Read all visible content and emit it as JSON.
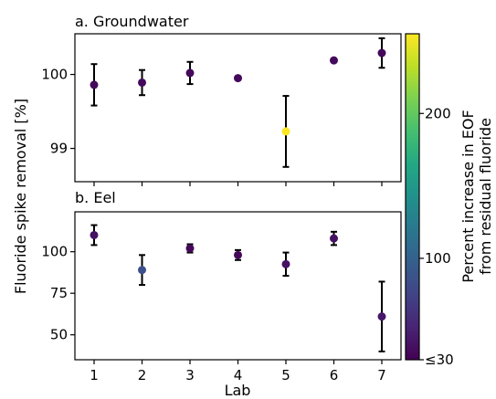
{
  "chart_data": {
    "type": "scatter",
    "ylabel": "Fluoride spike removal [%]",
    "xlabel": "Lab",
    "x_ticks": [
      1,
      2,
      3,
      4,
      5,
      6,
      7
    ],
    "xlim": [
      0.6,
      7.4
    ],
    "colorbar": {
      "label_line1": "Percent increase in EOF",
      "label_line2": "from residual fluoride",
      "colormap": "viridis",
      "range": [
        30,
        255
      ],
      "ticks": [
        {
          "value": 30,
          "label": "≤30"
        },
        {
          "value": 100,
          "label": "100"
        },
        {
          "value": 200,
          "label": "200"
        }
      ]
    },
    "panels": [
      {
        "title": "a. Groundwater",
        "ylim": [
          98.55,
          100.55
        ],
        "y_ticks": [
          99,
          100
        ],
        "points": [
          {
            "x": 1,
            "y": 99.86,
            "yerr": 0.28,
            "c": 35
          },
          {
            "x": 2,
            "y": 99.89,
            "yerr": 0.17,
            "c": 35
          },
          {
            "x": 3,
            "y": 100.02,
            "yerr": 0.15,
            "c": 35
          },
          {
            "x": 4,
            "y": 99.95,
            "yerr": 0,
            "c": 35
          },
          {
            "x": 5,
            "y": 99.23,
            "yerr": 0.48,
            "c": 255
          },
          {
            "x": 6,
            "y": 100.19,
            "yerr": 0,
            "c": 35
          },
          {
            "x": 7,
            "y": 100.29,
            "yerr": 0.2,
            "c": 35
          }
        ]
      },
      {
        "title": "b. Eel",
        "ylim": [
          35,
          124
        ],
        "y_ticks": [
          50,
          75,
          100
        ],
        "points": [
          {
            "x": 1,
            "y": 110,
            "yerr": 6,
            "c": 40
          },
          {
            "x": 2,
            "y": 89,
            "yerr": 9,
            "c": 85
          },
          {
            "x": 3,
            "y": 102,
            "yerr": 2.5,
            "c": 35
          },
          {
            "x": 4,
            "y": 98,
            "yerr": 3,
            "c": 35
          },
          {
            "x": 5,
            "y": 92.5,
            "yerr": 7,
            "c": 40
          },
          {
            "x": 6,
            "y": 108,
            "yerr": 4,
            "c": 40
          },
          {
            "x": 7,
            "y": 61,
            "yerr": 21,
            "c": 45
          }
        ]
      }
    ]
  }
}
